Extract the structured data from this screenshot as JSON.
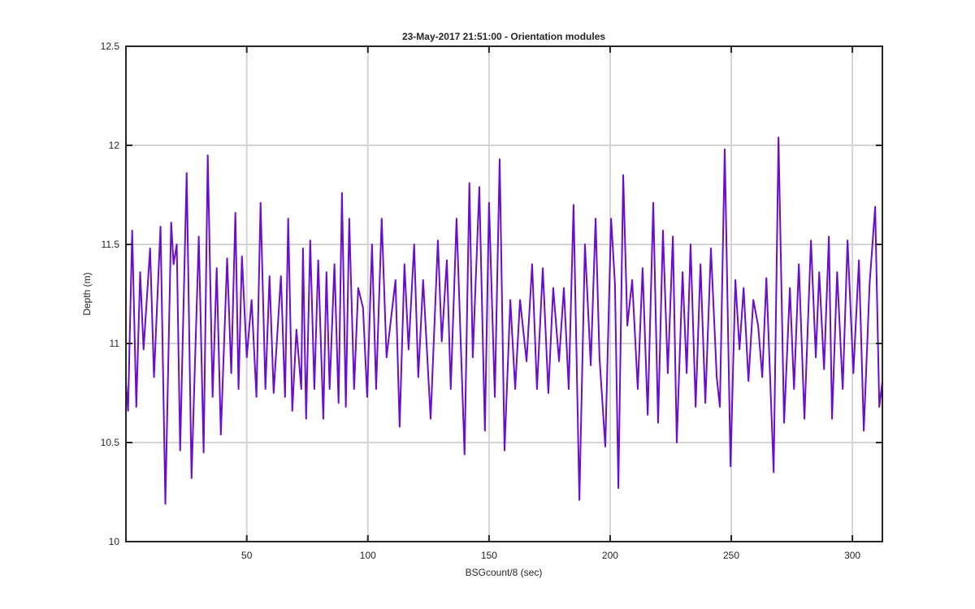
{
  "chart_data": {
    "type": "line",
    "title": "23-May-2017 21:51:00 - Orientation modules",
    "x_label": "BSGcount/8 (sec)",
    "y_label": "Depth (m)",
    "x": [
      0.1,
      1.0,
      2.7,
      4.4,
      6.0,
      7.4,
      10.1,
      11.7,
      14.4,
      16.4,
      18.8,
      19.8,
      21.1,
      22.5,
      25.2,
      27.2,
      30.2,
      32.2,
      33.9,
      35.9,
      37.6,
      39.3,
      41.9,
      43.6,
      45.3,
      46.6,
      48.0,
      50.0,
      52.0,
      54.0,
      55.7,
      57.7,
      59.4,
      61.1,
      64.1,
      65.8,
      67.1,
      68.8,
      70.5,
      72.5,
      73.2,
      74.5,
      76.2,
      77.9,
      79.5,
      81.6,
      82.9,
      84.2,
      86.2,
      87.9,
      89.3,
      90.9,
      92.3,
      94.3,
      96.0,
      98.0,
      99.7,
      101.7,
      103.4,
      105.7,
      107.7,
      111.4,
      113.1,
      115.1,
      116.8,
      119.1,
      120.8,
      122.8,
      125.9,
      128.9,
      130.5,
      132.6,
      134.2,
      136.6,
      139.9,
      141.9,
      143.3,
      146.0,
      148.3,
      150.0,
      152.4,
      154.4,
      156.4,
      158.8,
      160.8,
      162.8,
      165.5,
      167.8,
      169.8,
      172.2,
      174.5,
      176.5,
      178.9,
      180.9,
      182.9,
      184.9,
      187.3,
      189.6,
      192.0,
      194.0,
      195.6,
      198.0,
      200.4,
      202.0,
      203.4,
      205.4,
      207.1,
      209.1,
      211.4,
      213.4,
      215.5,
      217.8,
      219.8,
      221.8,
      223.8,
      225.9,
      227.5,
      229.9,
      231.6,
      233.2,
      235.3,
      237.3,
      239.3,
      241.6,
      244.0,
      245.3,
      247.3,
      249.7,
      251.7,
      253.4,
      255.1,
      257.1,
      259.1,
      261.1,
      262.8,
      264.5,
      267.5,
      269.5,
      271.8,
      274.2,
      275.9,
      277.9,
      280.2,
      282.9,
      284.9,
      286.3,
      288.3,
      290.3,
      291.6,
      293.7,
      296.0,
      298.0,
      300.4,
      302.7,
      304.7,
      307.1,
      309.4,
      311.1,
      312.4
    ],
    "series": [
      {
        "color": "#6a0dcc",
        "values": [
          10.81,
          10.66,
          11.57,
          10.68,
          11.36,
          10.97,
          11.48,
          10.83,
          11.59,
          10.19,
          11.61,
          11.4,
          11.5,
          10.46,
          11.86,
          10.32,
          11.54,
          10.45,
          11.95,
          10.73,
          11.38,
          10.54,
          11.43,
          10.85,
          11.66,
          10.77,
          11.44,
          10.93,
          11.22,
          10.73,
          11.71,
          10.77,
          11.34,
          10.75,
          11.34,
          10.73,
          11.63,
          10.66,
          11.07,
          10.77,
          11.48,
          10.62,
          11.52,
          10.77,
          11.42,
          10.62,
          11.36,
          10.77,
          11.4,
          10.7,
          11.76,
          10.68,
          11.63,
          10.77,
          11.28,
          11.18,
          10.73,
          11.5,
          10.77,
          11.63,
          10.93,
          11.32,
          10.58,
          11.4,
          10.97,
          11.5,
          10.83,
          11.32,
          10.62,
          11.52,
          11.01,
          11.42,
          10.77,
          11.63,
          10.44,
          11.81,
          10.93,
          11.79,
          10.56,
          11.71,
          10.73,
          11.93,
          10.46,
          11.22,
          10.77,
          11.22,
          10.91,
          11.4,
          10.77,
          11.38,
          10.75,
          11.28,
          10.91,
          11.28,
          10.77,
          11.7,
          10.21,
          11.5,
          10.89,
          11.63,
          10.93,
          10.48,
          11.63,
          11.3,
          10.27,
          11.85,
          11.09,
          11.32,
          10.77,
          11.38,
          10.64,
          11.71,
          10.6,
          11.57,
          10.85,
          11.54,
          10.5,
          11.36,
          10.85,
          11.5,
          10.68,
          11.4,
          10.7,
          11.48,
          10.83,
          10.68,
          11.98,
          10.38,
          11.32,
          10.97,
          11.28,
          10.81,
          11.22,
          11.09,
          10.83,
          11.33,
          10.35,
          12.04,
          10.6,
          11.28,
          10.77,
          11.4,
          10.62,
          11.52,
          10.93,
          11.36,
          10.87,
          11.54,
          10.62,
          11.36,
          10.77,
          11.52,
          10.85,
          11.42,
          10.56,
          11.3,
          11.69,
          10.68,
          10.81
        ]
      }
    ],
    "xlim": [
      0.125,
      312.375
    ],
    "ylim": [
      10,
      12.5
    ],
    "xticks": [
      50,
      100,
      150,
      200,
      250,
      300
    ],
    "yticks": [
      10,
      10.5,
      11,
      11.5,
      12,
      12.5
    ],
    "grid": true
  }
}
